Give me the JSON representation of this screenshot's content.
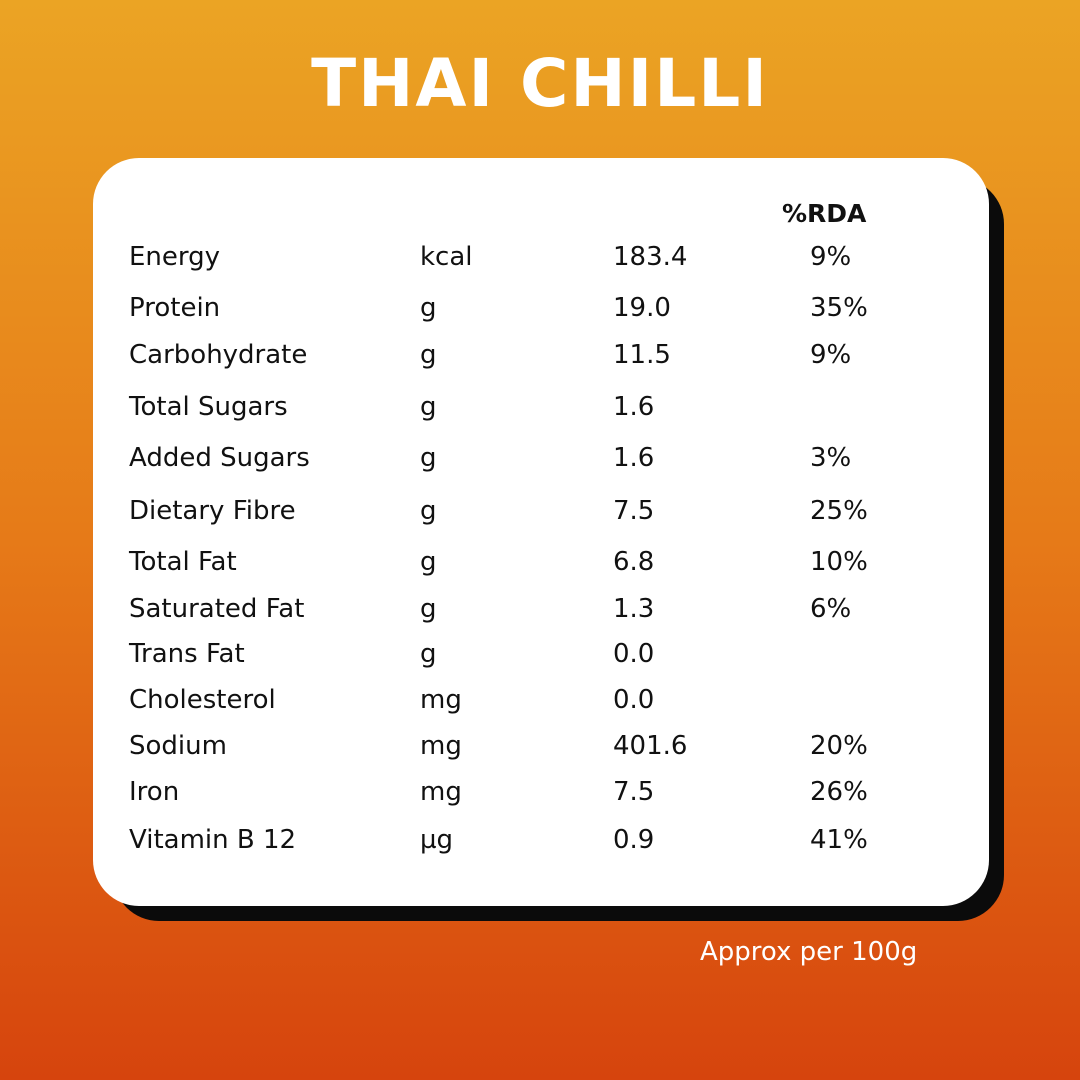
{
  "title": "THAI CHILLI",
  "table": {
    "rda_header": "%RDA",
    "rows": [
      {
        "name": "Energy",
        "unit": "kcal",
        "value": "183.4",
        "rda": "9%"
      },
      {
        "name": "Protein",
        "unit": "g",
        "value": "19.0",
        "rda": "35%"
      },
      {
        "name": "Carbohydrate",
        "unit": "g",
        "value": "11.5",
        "rda": "9%"
      },
      {
        "name": "Total Sugars",
        "unit": "g",
        "value": "1.6",
        "rda": ""
      },
      {
        "name": "Added Sugars",
        "unit": "g",
        "value": "1.6",
        "rda": "3%"
      },
      {
        "name": "Dietary Fibre",
        "unit": "g",
        "value": "7.5",
        "rda": "25%"
      },
      {
        "name": "Total Fat",
        "unit": "g",
        "value": "6.8",
        "rda": "10%"
      },
      {
        "name": "Saturated Fat",
        "unit": "g",
        "value": "1.3",
        "rda": "6%"
      },
      {
        "name": "Trans Fat",
        "unit": "g",
        "value": "0.0",
        "rda": ""
      },
      {
        "name": "Cholesterol",
        "unit": "mg",
        "value": "0.0",
        "rda": ""
      },
      {
        "name": "Sodium",
        "unit": "mg",
        "value": "401.6",
        "rda": "20%"
      },
      {
        "name": "Iron",
        "unit": "mg",
        "value": "7.5",
        "rda": "26%"
      },
      {
        "name": "Vitamin B 12",
        "unit": "µg",
        "value": "0.9",
        "rda": "41%"
      }
    ]
  },
  "footnote": "Approx per 100g",
  "colors": {
    "background_top": "#eba424",
    "background_bottom": "#d6440d",
    "card": "#ffffff",
    "card_shadow": "#0b0b0b",
    "text": "#111111"
  }
}
